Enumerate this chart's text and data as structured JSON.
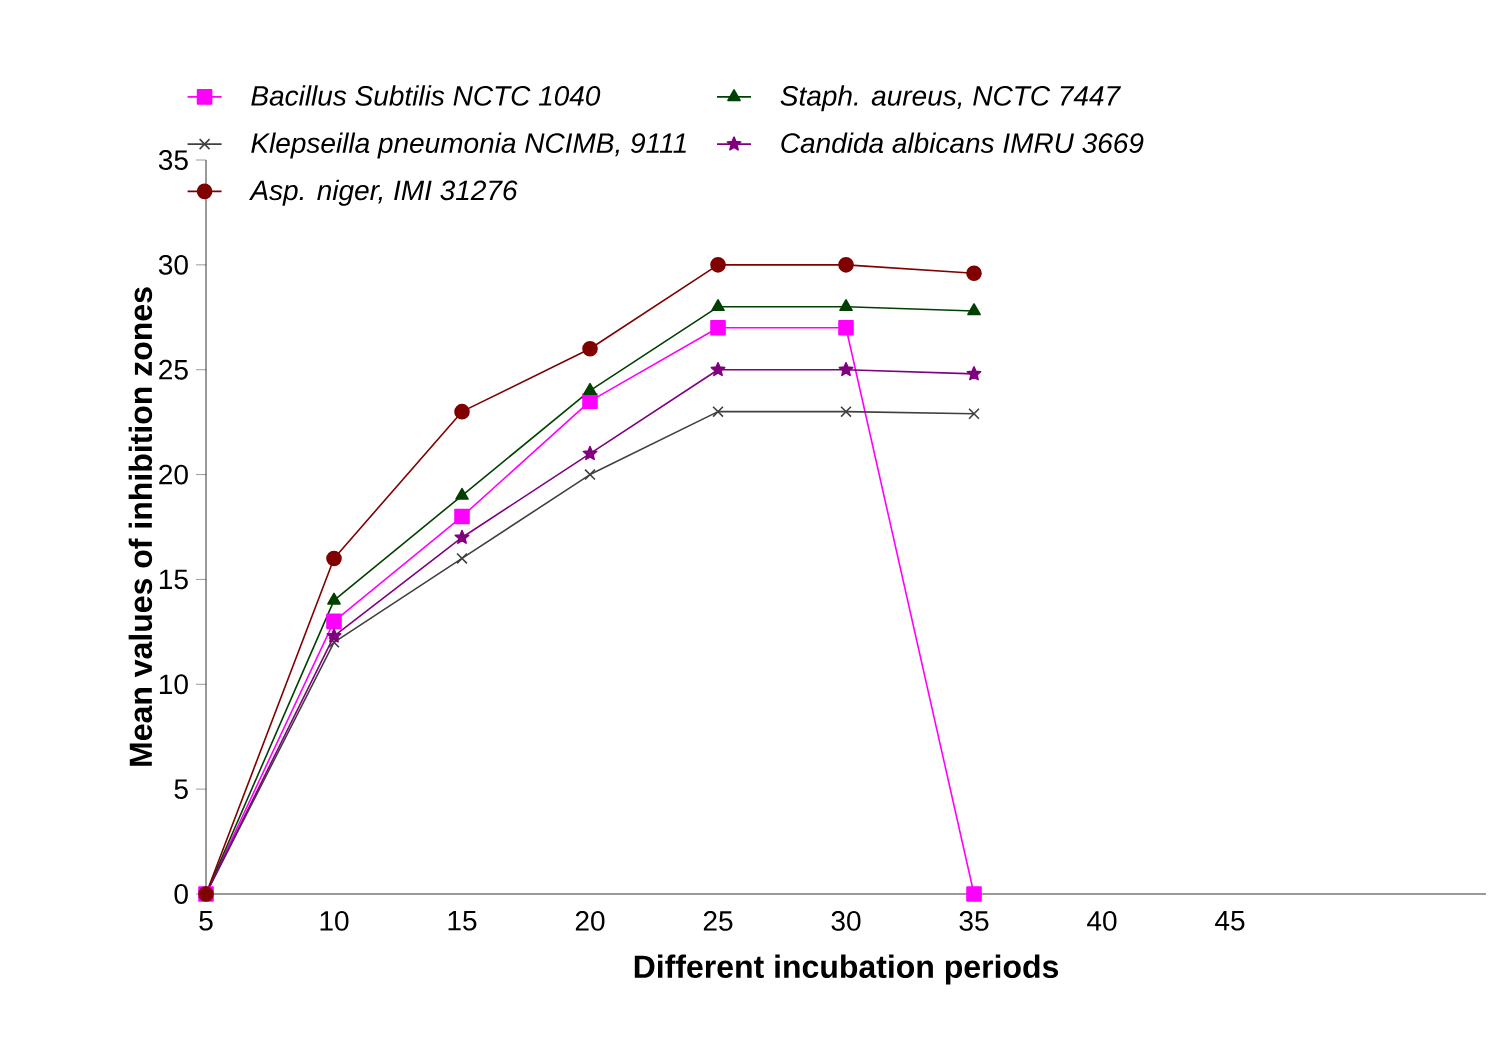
{
  "chart_data": {
    "type": "line",
    "xlabel": "Different incubation periods",
    "ylabel": "Mean values of inhibition zones",
    "categories": [
      "5",
      "10",
      "15",
      "20",
      "25",
      "30",
      "35",
      "40",
      "45",
      null
    ],
    "ylim": [
      0,
      35
    ],
    "yticks": [
      0,
      5,
      10,
      15,
      20,
      25,
      30,
      35
    ],
    "grid": false,
    "legend": "top left",
    "series": [
      {
        "name": "Bacillus Subtilis NCTC  1040",
        "color": "#ff00ff",
        "marker": "square",
        "values": [
          0,
          13,
          18,
          23.5,
          27,
          27,
          0,
          null,
          null,
          null
        ]
      },
      {
        "name": "Staph. aureus, NCTC 7447",
        "color": "#004000",
        "marker": "triangle",
        "values": [
          0,
          14,
          19,
          24,
          28,
          28,
          27.8,
          null,
          null,
          null
        ]
      },
      {
        "name": "Klepseilla pneumonia NCIMB, 9111",
        "color": "#404040",
        "marker": "cross",
        "values": [
          0,
          12,
          16,
          20,
          23,
          23,
          22.9,
          null,
          null,
          null
        ]
      },
      {
        "name": "Candida albicans IMRU 3669",
        "color": "#800080",
        "marker": "star",
        "values": [
          0,
          12.3,
          17,
          21,
          25,
          25,
          24.8,
          null,
          null,
          null
        ]
      },
      {
        "name": "Asp. niger, IMI 31276",
        "color": "#800000",
        "marker": "circle",
        "values": [
          0,
          16,
          23,
          26,
          30,
          30,
          29.6,
          null,
          null,
          null
        ]
      }
    ]
  }
}
